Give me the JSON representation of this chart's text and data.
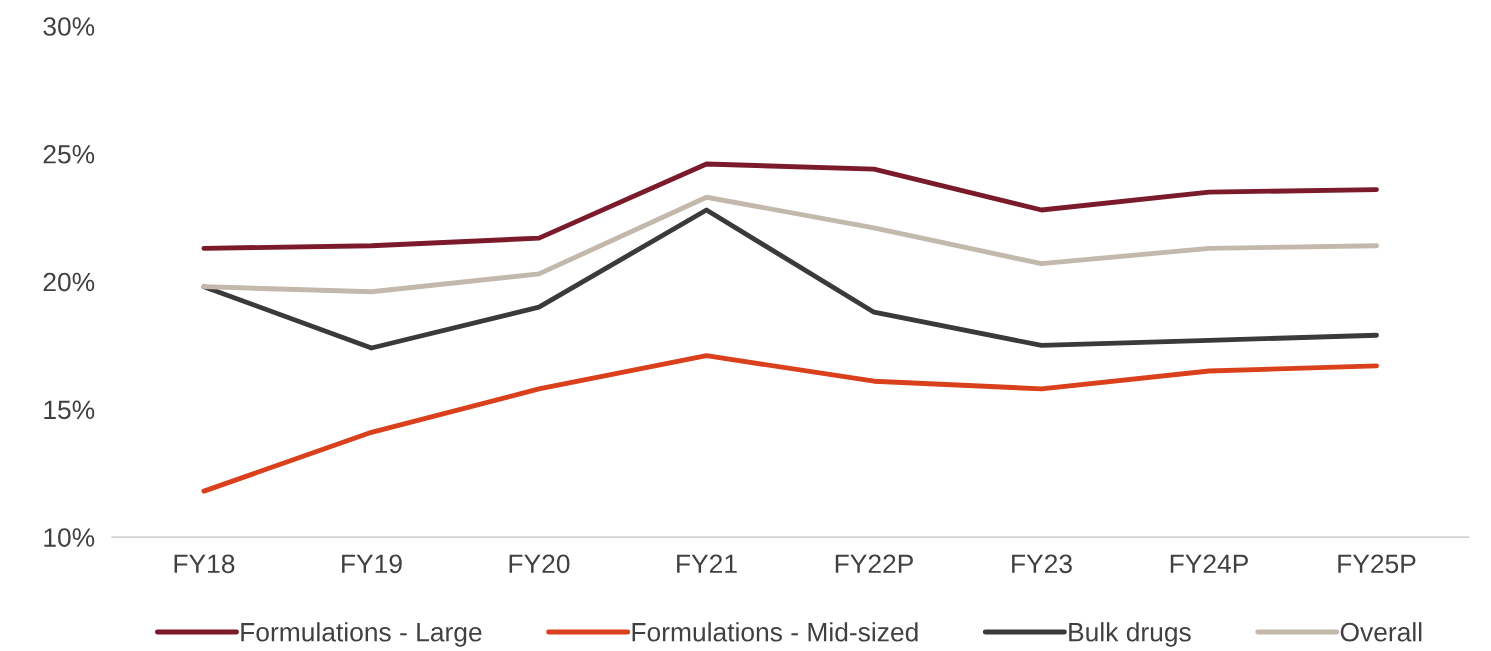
{
  "chart_data": {
    "type": "line",
    "categories": [
      "FY18",
      "FY19",
      "FY20",
      "FY21",
      "FY22P",
      "FY23",
      "FY24P",
      "FY25P"
    ],
    "series": [
      {
        "name": "Formulations - Large",
        "color": "#7b1a2a",
        "values": [
          21.3,
          21.4,
          21.7,
          24.6,
          24.4,
          22.8,
          23.5,
          23.6
        ]
      },
      {
        "name": "Formulations - Mid-sized",
        "color": "#d9401b",
        "values": [
          11.8,
          14.1,
          15.8,
          17.1,
          16.1,
          15.8,
          16.5,
          16.7
        ]
      },
      {
        "name": "Bulk drugs",
        "color": "#3a3a3a",
        "values": [
          19.8,
          17.4,
          19.0,
          22.8,
          18.8,
          17.5,
          17.7,
          17.9
        ]
      },
      {
        "name": "Overall",
        "color": "#c2b8ac",
        "values": [
          19.8,
          19.6,
          20.3,
          23.3,
          22.1,
          20.7,
          21.3,
          21.4
        ]
      }
    ],
    "ylim": [
      10,
      30
    ],
    "yticks": [
      {
        "value": 10,
        "label": "10%"
      },
      {
        "value": 15,
        "label": "15%"
      },
      {
        "value": 20,
        "label": "20%"
      },
      {
        "value": 25,
        "label": "25%"
      },
      {
        "value": 30,
        "label": "30%"
      }
    ],
    "grid": false,
    "legend": "bottom",
    "marker": "none",
    "line_style": "solid"
  }
}
